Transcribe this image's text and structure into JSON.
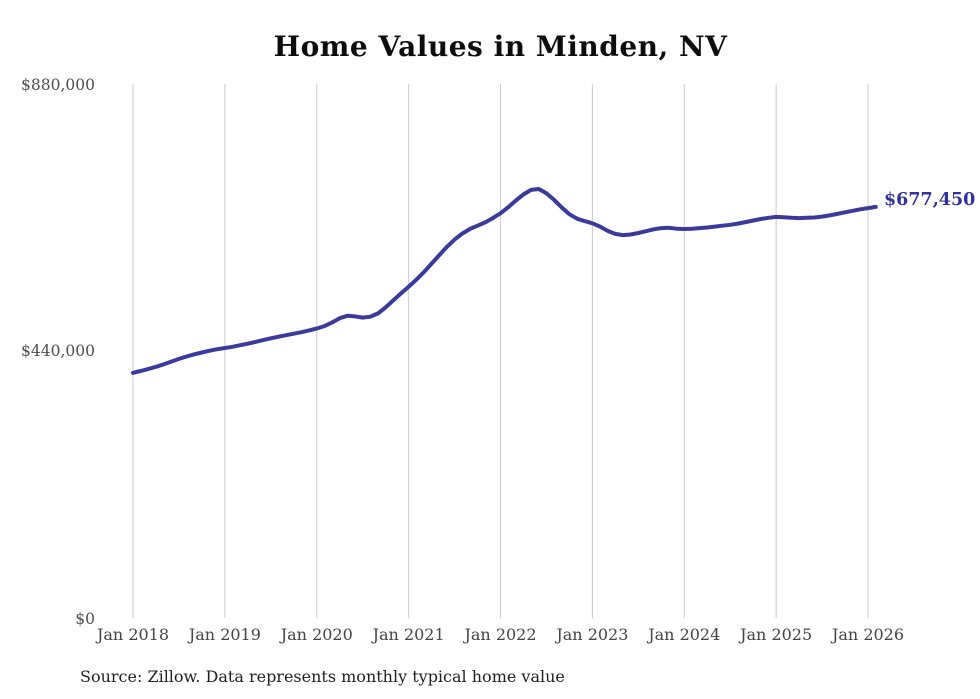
{
  "title": "Home Values in Minden, NV",
  "source_note": "Source: Zillow. Data represents monthly typical home value",
  "end_label": "$677,450",
  "colors": {
    "background": "#ffffff",
    "line": "#3a3a9c",
    "end_label_text": "#32329b",
    "gridline": "#cccccc",
    "y_axis_text": "#4d4d4d",
    "x_axis_text": "#444444",
    "title_text": "#0d0d0d",
    "source_text": "#1f1f1f"
  },
  "chart_data": {
    "type": "line",
    "title": "Home Values in Minden, NV",
    "xlabel": "",
    "ylabel": "",
    "ylim": [
      0,
      880000
    ],
    "grid": "vertical-only",
    "legend": "none",
    "x_start_month": "Jan 2018",
    "x_end_month": "Feb 2026",
    "x_frequency": "monthly",
    "x_tick_labels": [
      "Jan 2018",
      "Jan 2019",
      "Jan 2020",
      "Jan 2021",
      "Jan 2022",
      "Jan 2023",
      "Jan 2024",
      "Jan 2025",
      "Jan 2026"
    ],
    "y_tick_labels": [
      "$880,000",
      "$440,000",
      "$0"
    ],
    "end_value": 677450,
    "values": [
      404000,
      407000,
      410500,
      414000,
      418000,
      422500,
      427000,
      431000,
      434500,
      437500,
      440500,
      443000,
      445000,
      447000,
      449500,
      452000,
      455000,
      458000,
      461000,
      463500,
      466000,
      468500,
      471000,
      474000,
      477000,
      481000,
      487000,
      494000,
      498000,
      497000,
      495000,
      496500,
      502000,
      512000,
      523500,
      535000,
      546000,
      557500,
      570000,
      584000,
      598000,
      611500,
      623500,
      633500,
      641000,
      646500,
      652000,
      659000,
      667000,
      677000,
      688000,
      698000,
      705500,
      707000,
      700000,
      689000,
      676500,
      665500,
      658000,
      654000,
      650500,
      645000,
      638000,
      633000,
      631000,
      632000,
      634500,
      637500,
      640500,
      642500,
      643000,
      641500,
      641000,
      641500,
      642500,
      643500,
      645000,
      646500,
      648000,
      650000,
      652500,
      655000,
      657500,
      659500,
      661000,
      660500,
      659500,
      659000,
      659500,
      660000,
      661500,
      663500,
      666000,
      668500,
      671000,
      673500,
      675500,
      677450
    ]
  }
}
